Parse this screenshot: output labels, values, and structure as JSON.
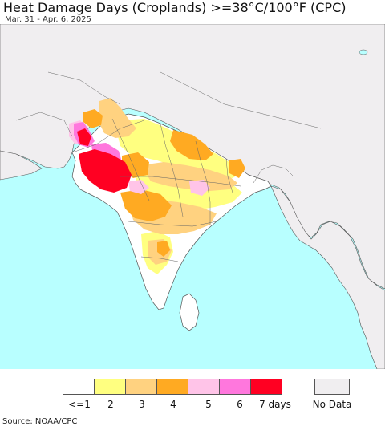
{
  "title": "Heat Damage Days (Croplands) >=38°C/100°F (CPC)",
  "subtitle": "Mar. 31 - Apr. 6, 2025",
  "source": "Source: NOAA/CPC",
  "legend": {
    "items": [
      {
        "label": "<=1",
        "color": "#ffffff"
      },
      {
        "label": "2",
        "color": "#ffff80"
      },
      {
        "label": "3",
        "color": "#ffd280"
      },
      {
        "label": "4",
        "color": "#ffaa22"
      },
      {
        "label": "5",
        "color": "#ffc4e8"
      },
      {
        "label": "6",
        "color": "#ff77dd"
      },
      {
        "label": "7 days",
        "color": "#ff0022"
      }
    ],
    "no_data": {
      "label": "No Data",
      "color": "#f0eef0"
    }
  },
  "colors": {
    "ocean": "#b8ffff",
    "land_no_data": "#f0eef0",
    "border": "#555555"
  }
}
